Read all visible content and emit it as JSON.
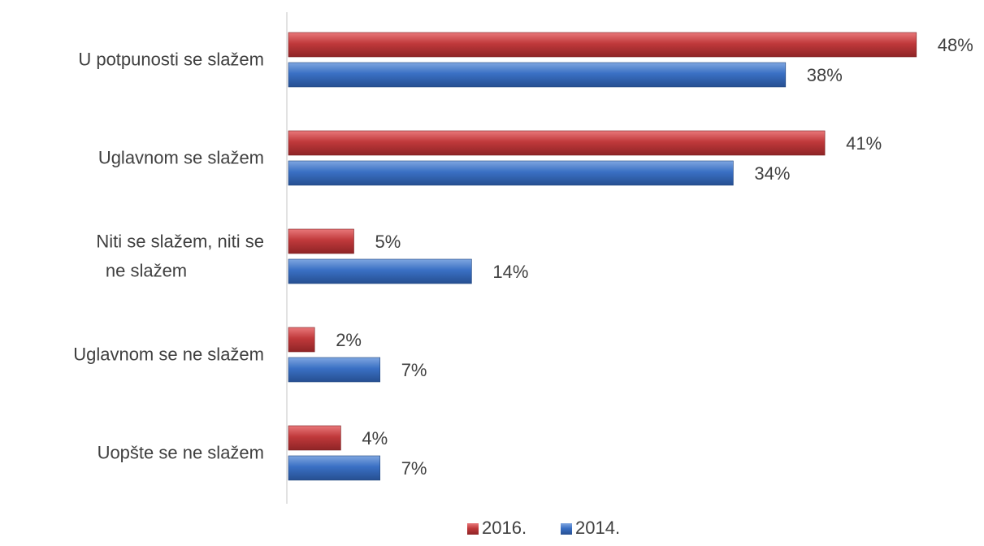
{
  "chart_data": {
    "type": "bar",
    "orientation": "horizontal",
    "categories": [
      "U potpunosti se slažem",
      "Uglavnom se slažem",
      "Niti se slažem, niti se ne slažem",
      "Uglavnom se ne slažem",
      "Uopšte se ne slažem"
    ],
    "series": [
      {
        "name": "2016.",
        "values": [
          48,
          41,
          5,
          2,
          4
        ],
        "labels": [
          "48%",
          "41%",
          "5%",
          "2%",
          "4%"
        ],
        "color": "#c0393b"
      },
      {
        "name": "2014.",
        "values": [
          38,
          34,
          14,
          7,
          7
        ],
        "labels": [
          "38%",
          "34%",
          "14%",
          "7%",
          "7%"
        ],
        "color": "#3a70c4"
      }
    ],
    "xlim": [
      0,
      50
    ],
    "grid": false,
    "legend": "bottom-center",
    "title": "",
    "xlabel": "",
    "ylabel": ""
  }
}
